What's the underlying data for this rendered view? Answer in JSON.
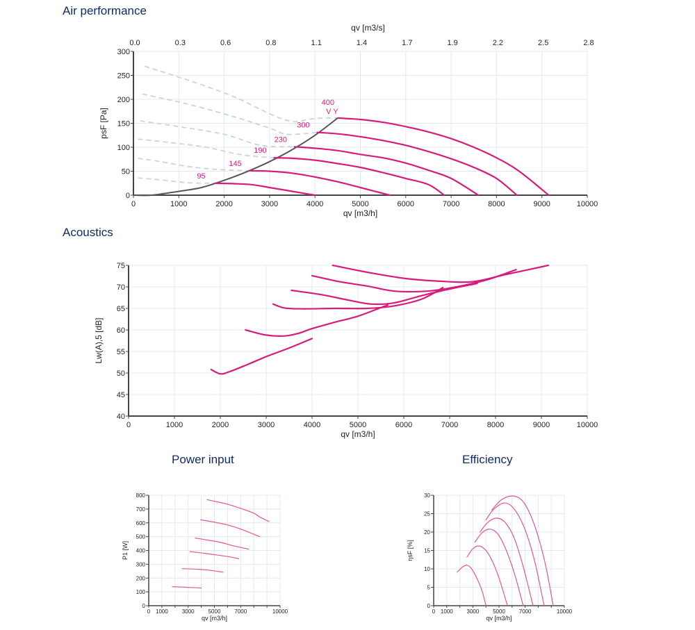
{
  "sections": {
    "air": "Air performance",
    "acoustics": "Acoustics",
    "power": "Power input",
    "efficiency": "Efficiency"
  },
  "colors": {
    "curve": "#d81b7a",
    "curve_light": "#e0559b",
    "system": "#555555",
    "dashed": "#c8d3e3",
    "grid": "#e3e8f0",
    "title": "#0f2a6b"
  },
  "chart_data": [
    {
      "id": "air",
      "type": "line",
      "title": "Air performance",
      "xlabel": "qv [m3/h]",
      "ylabel": "psF [Pa]",
      "x2label": "qv [m3/s]",
      "xlim": [
        0,
        10000
      ],
      "ylim": [
        0,
        300
      ],
      "xticks": [
        0,
        1000,
        2000,
        3000,
        4000,
        5000,
        6000,
        7000,
        8000,
        9000,
        10000
      ],
      "yticks": [
        0,
        50,
        100,
        150,
        200,
        250,
        300
      ],
      "x2ticks": [
        "0.0",
        "0.3",
        "0.6",
        "0.8",
        "1.1",
        "1.4",
        "1.7",
        "1.9",
        "2.2",
        "2.5",
        "2.8"
      ],
      "grid": true,
      "series": [
        {
          "name": "95",
          "label": "95",
          "points": [
            [
              1800,
              25
            ],
            [
              2200,
              24
            ],
            [
              2600,
              22
            ],
            [
              3000,
              16
            ],
            [
              3500,
              8
            ],
            [
              4000,
              0
            ]
          ]
        },
        {
          "name": "145",
          "label": "145",
          "points": [
            [
              2550,
              51
            ],
            [
              3000,
              50
            ],
            [
              3500,
              46
            ],
            [
              4000,
              38
            ],
            [
              4500,
              28
            ],
            [
              5000,
              16
            ],
            [
              5650,
              0
            ]
          ]
        },
        {
          "name": "190",
          "label": "190",
          "points": [
            [
              3100,
              78
            ],
            [
              3500,
              77
            ],
            [
              4000,
              73
            ],
            [
              4500,
              66
            ],
            [
              5000,
              58
            ],
            [
              5500,
              47
            ],
            [
              6000,
              35
            ],
            [
              6500,
              22
            ],
            [
              6850,
              0
            ]
          ]
        },
        {
          "name": "230",
          "label": "230",
          "points": [
            [
              3550,
              101
            ],
            [
              4000,
              98
            ],
            [
              4500,
              93
            ],
            [
              5000,
              85
            ],
            [
              5500,
              78
            ],
            [
              6000,
              67
            ],
            [
              6500,
              52
            ],
            [
              7000,
              35
            ],
            [
              7600,
              0
            ]
          ]
        },
        {
          "name": "300",
          "label": "300",
          "points": [
            [
              4050,
              131
            ],
            [
              4500,
              128
            ],
            [
              5000,
              122
            ],
            [
              5500,
              114
            ],
            [
              6000,
              104
            ],
            [
              6500,
              91
            ],
            [
              7000,
              76
            ],
            [
              7500,
              58
            ],
            [
              8000,
              35
            ],
            [
              8450,
              0
            ]
          ]
        },
        {
          "name": "400",
          "label": "400\nV Y",
          "points": [
            [
              4500,
              161
            ],
            [
              5000,
              158
            ],
            [
              5500,
              152
            ],
            [
              6000,
              143
            ],
            [
              6500,
              132
            ],
            [
              7000,
              118
            ],
            [
              7500,
              100
            ],
            [
              8000,
              78
            ],
            [
              8500,
              50
            ],
            [
              9150,
              0
            ]
          ]
        }
      ],
      "system_curve": {
        "name": "system",
        "points": [
          [
            0,
            0
          ],
          [
            400,
            0
          ],
          [
            1000,
            8
          ],
          [
            1500,
            16
          ],
          [
            2000,
            31
          ],
          [
            2500,
            49
          ],
          [
            3000,
            70
          ],
          [
            3500,
            95
          ],
          [
            4000,
            125
          ],
          [
            4500,
            161
          ]
        ]
      },
      "dashed_series": [
        {
          "name": "ext-95",
          "points": [
            [
              100,
              36
            ],
            [
              600,
              32
            ],
            [
              1200,
              26
            ],
            [
              1800,
              25
            ]
          ]
        },
        {
          "name": "ext-145",
          "points": [
            [
              100,
              77
            ],
            [
              600,
              70
            ],
            [
              1200,
              60
            ],
            [
              1800,
              54
            ],
            [
              2550,
              51
            ]
          ]
        },
        {
          "name": "ext-190",
          "points": [
            [
              100,
              117
            ],
            [
              800,
              110
            ],
            [
              1600,
              100
            ],
            [
              2400,
              84
            ],
            [
              3100,
              78
            ]
          ]
        },
        {
          "name": "ext-230",
          "points": [
            [
              150,
              155
            ],
            [
              1000,
              143
            ],
            [
              2000,
              127
            ],
            [
              2800,
              104
            ],
            [
              3550,
              101
            ]
          ]
        },
        {
          "name": "ext-300",
          "points": [
            [
              200,
              211
            ],
            [
              1200,
              190
            ],
            [
              2200,
              164
            ],
            [
              3000,
              140
            ],
            [
              3400,
              127
            ],
            [
              4050,
              131
            ]
          ]
        },
        {
          "name": "ext-400",
          "points": [
            [
              250,
              269
            ],
            [
              1200,
              240
            ],
            [
              2200,
              206
            ],
            [
              3000,
              170
            ],
            [
              3500,
              154
            ],
            [
              4000,
              160
            ],
            [
              4500,
              161
            ]
          ]
        }
      ],
      "annotations": [
        "400",
        "V Y",
        "300",
        "230",
        "190",
        "145",
        "95"
      ]
    },
    {
      "id": "acoustics",
      "type": "line",
      "title": "Acoustics",
      "xlabel": "qv [m3/h]",
      "ylabel": "Lw(A),5 [dB]",
      "xlim": [
        0,
        10000
      ],
      "ylim": [
        40,
        75
      ],
      "xticks": [
        0,
        1000,
        2000,
        3000,
        4000,
        5000,
        6000,
        7000,
        8000,
        9000,
        10000
      ],
      "yticks": [
        40,
        45,
        50,
        55,
        60,
        65,
        70,
        75
      ],
      "grid": true,
      "series": [
        {
          "name": "95",
          "points": [
            [
              1800,
              50.8
            ],
            [
              2000,
              49.8
            ],
            [
              2200,
              50.3
            ],
            [
              2600,
              52
            ],
            [
              3000,
              53.8
            ],
            [
              3500,
              55.8
            ],
            [
              4000,
              58
            ]
          ]
        },
        {
          "name": "145",
          "points": [
            [
              2550,
              60
            ],
            [
              3000,
              58.8
            ],
            [
              3400,
              58.6
            ],
            [
              3700,
              59.2
            ],
            [
              4000,
              60.3
            ],
            [
              4500,
              61.8
            ],
            [
              5000,
              63.2
            ],
            [
              5650,
              65.8
            ]
          ]
        },
        {
          "name": "190",
          "points": [
            [
              3150,
              66
            ],
            [
              3400,
              65.1
            ],
            [
              3800,
              64.9
            ],
            [
              4500,
              65
            ],
            [
              5200,
              65
            ],
            [
              5800,
              65.6
            ],
            [
              6400,
              67.2
            ],
            [
              6850,
              69.8
            ]
          ]
        },
        {
          "name": "230",
          "points": [
            [
              3550,
              69.2
            ],
            [
              4200,
              68.2
            ],
            [
              4800,
              66.9
            ],
            [
              5300,
              66
            ],
            [
              5800,
              66.3
            ],
            [
              6400,
              68
            ],
            [
              7000,
              69.5
            ],
            [
              7600,
              70.8
            ]
          ]
        },
        {
          "name": "300",
          "points": [
            [
              4000,
              72.6
            ],
            [
              4600,
              71.2
            ],
            [
              5200,
              70.2
            ],
            [
              5800,
              69
            ],
            [
              6500,
              69
            ],
            [
              7100,
              69.9
            ],
            [
              7800,
              71.6
            ],
            [
              8450,
              74
            ]
          ]
        },
        {
          "name": "400",
          "points": [
            [
              4450,
              75
            ],
            [
              5200,
              73.4
            ],
            [
              6000,
              72
            ],
            [
              6800,
              71.3
            ],
            [
              7500,
              71.2
            ],
            [
              8200,
              72.8
            ],
            [
              9150,
              75
            ]
          ]
        }
      ]
    },
    {
      "id": "power",
      "type": "line",
      "title": "Power input",
      "xlabel": "qv [m3/h]",
      "ylabel": "P1 [W]",
      "xlim": [
        0,
        10000
      ],
      "ylim": [
        0,
        800
      ],
      "xticks": [
        "0",
        "1000",
        "3000",
        "5000",
        "7000",
        "10000"
      ],
      "xtick_values": [
        0,
        1000,
        3000,
        5000,
        7000,
        10000
      ],
      "yticks": [
        0,
        100,
        200,
        300,
        400,
        500,
        600,
        700,
        800
      ],
      "grid": true,
      "series": [
        {
          "name": "95",
          "points": [
            [
              1800,
              138
            ],
            [
              2500,
              135
            ],
            [
              3200,
              132
            ],
            [
              4000,
              128
            ]
          ]
        },
        {
          "name": "145",
          "points": [
            [
              2550,
              268
            ],
            [
              3500,
              265
            ],
            [
              4500,
              258
            ],
            [
              5650,
              243
            ]
          ]
        },
        {
          "name": "190",
          "points": [
            [
              3150,
              392
            ],
            [
              4200,
              380
            ],
            [
              5300,
              366
            ],
            [
              6200,
              353
            ],
            [
              6850,
              340
            ]
          ]
        },
        {
          "name": "230",
          "points": [
            [
              3550,
              490
            ],
            [
              4500,
              475
            ],
            [
              5500,
              458
            ],
            [
              6500,
              432
            ],
            [
              7600,
              410
            ]
          ]
        },
        {
          "name": "300",
          "points": [
            [
              3950,
              622
            ],
            [
              5000,
              605
            ],
            [
              6000,
              585
            ],
            [
              7000,
              555
            ],
            [
              8450,
              500
            ]
          ]
        },
        {
          "name": "400",
          "points": [
            [
              4450,
              768
            ],
            [
              5200,
              752
            ],
            [
              6000,
              735
            ],
            [
              7000,
              705
            ],
            [
              8000,
              670
            ],
            [
              8500,
              640
            ],
            [
              9150,
              610
            ]
          ]
        }
      ]
    },
    {
      "id": "efficiency",
      "type": "line",
      "title": "Efficiency",
      "xlabel": "qv [m3/h]",
      "ylabel": "ηsF [%]",
      "xlim": [
        0,
        10000
      ],
      "ylim": [
        0,
        30
      ],
      "xticks": [
        "0",
        "1000",
        "3000",
        "5000",
        "7000",
        "10000"
      ],
      "xtick_values": [
        0,
        1000,
        3000,
        5000,
        7000,
        10000
      ],
      "yticks": [
        0,
        5,
        10,
        15,
        20,
        25,
        30
      ],
      "grid": true,
      "series": [
        {
          "name": "95",
          "points": [
            [
              1800,
              9.1
            ],
            [
              2200,
              10.5
            ],
            [
              2550,
              11
            ],
            [
              2900,
              10
            ],
            [
              3300,
              7.5
            ],
            [
              3700,
              4
            ],
            [
              4000,
              0
            ]
          ]
        },
        {
          "name": "145",
          "points": [
            [
              2550,
              13.2
            ],
            [
              3000,
              15.5
            ],
            [
              3500,
              16.2
            ],
            [
              4000,
              15
            ],
            [
              4500,
              12
            ],
            [
              5000,
              7.5
            ],
            [
              5650,
              0
            ]
          ]
        },
        {
          "name": "190",
          "points": [
            [
              3150,
              17.2
            ],
            [
              3700,
              19.8
            ],
            [
              4300,
              20.8
            ],
            [
              4900,
              19.5
            ],
            [
              5500,
              15.5
            ],
            [
              6200,
              8.5
            ],
            [
              6850,
              0
            ]
          ]
        },
        {
          "name": "230",
          "points": [
            [
              3550,
              20
            ],
            [
              4100,
              22.5
            ],
            [
              4800,
              23.8
            ],
            [
              5500,
              22.5
            ],
            [
              6200,
              18
            ],
            [
              6900,
              10
            ],
            [
              7600,
              0
            ]
          ]
        },
        {
          "name": "300",
          "points": [
            [
              4000,
              23.3
            ],
            [
              4600,
              26.2
            ],
            [
              5400,
              27.9
            ],
            [
              6100,
              26.5
            ],
            [
              6900,
              21.5
            ],
            [
              7700,
              12.5
            ],
            [
              8450,
              0
            ]
          ]
        },
        {
          "name": "400",
          "points": [
            [
              4450,
              26
            ],
            [
              5200,
              28.8
            ],
            [
              6100,
              29.8
            ],
            [
              6900,
              28
            ],
            [
              7700,
              22
            ],
            [
              8500,
              12
            ],
            [
              9150,
              0
            ]
          ]
        }
      ]
    }
  ]
}
